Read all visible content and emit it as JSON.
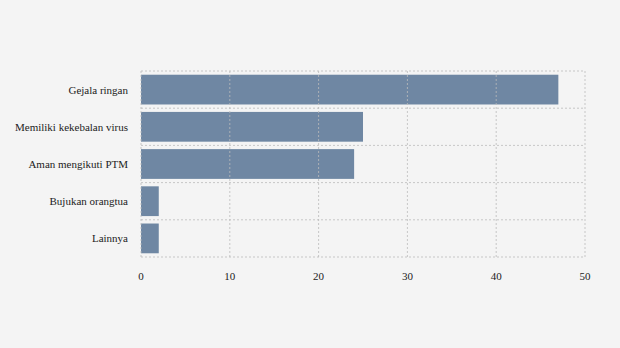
{
  "chart_data": {
    "type": "bar",
    "orientation": "horizontal",
    "categories": [
      "Gejala ringan",
      "Memiliki kekebalan virus",
      "Aman mengikuti PTM",
      "Bujukan orangtua",
      "Lainnya"
    ],
    "values": [
      47,
      25,
      24,
      2,
      2
    ],
    "color": "#6f87a3",
    "xlim": [
      0,
      50
    ],
    "xticks": [
      0,
      10,
      20,
      30,
      40,
      50
    ],
    "grid": true
  }
}
